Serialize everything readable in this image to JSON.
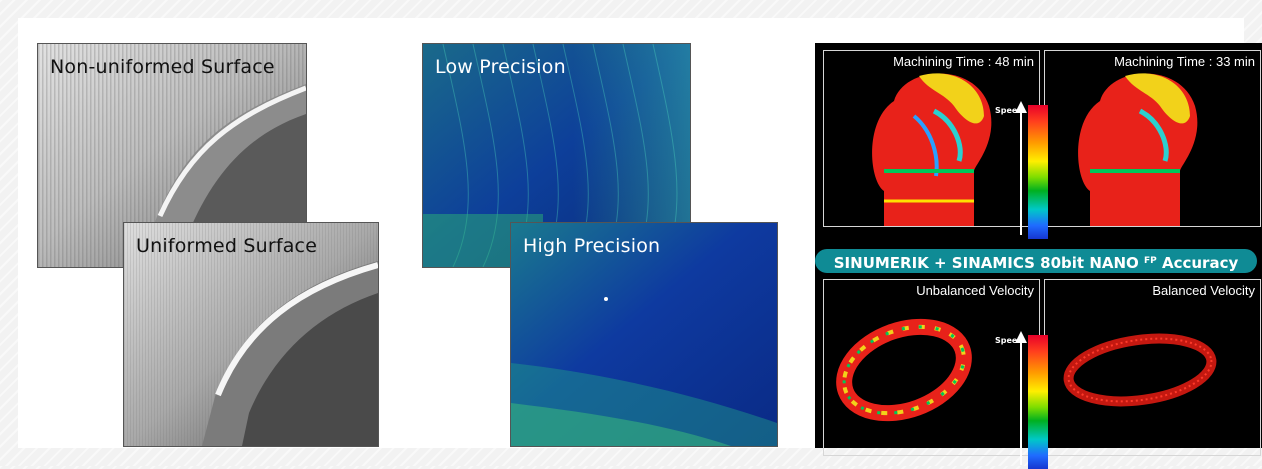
{
  "surface_comparison": {
    "rough_label": "Non-uniformed Surface",
    "smooth_label": "Uniformed Surface"
  },
  "precision_comparison": {
    "low_label": "Low Precision",
    "high_label": "High Precision"
  },
  "machining_panel": {
    "time_left": "Machining Time : 48 min",
    "time_right": "Machining Time : 33 min",
    "banner_main": "SINUMERIK + SINAMICS  80bit NANO ",
    "banner_sup": "FP",
    "banner_tail": " Accuracy",
    "velocity_left": "Unbalanced Velocity",
    "velocity_right": "Balanced Velocity",
    "speed_label_top": "Speed",
    "speed_label_bottom": "Speed",
    "accent_color": "#0f8b95"
  }
}
